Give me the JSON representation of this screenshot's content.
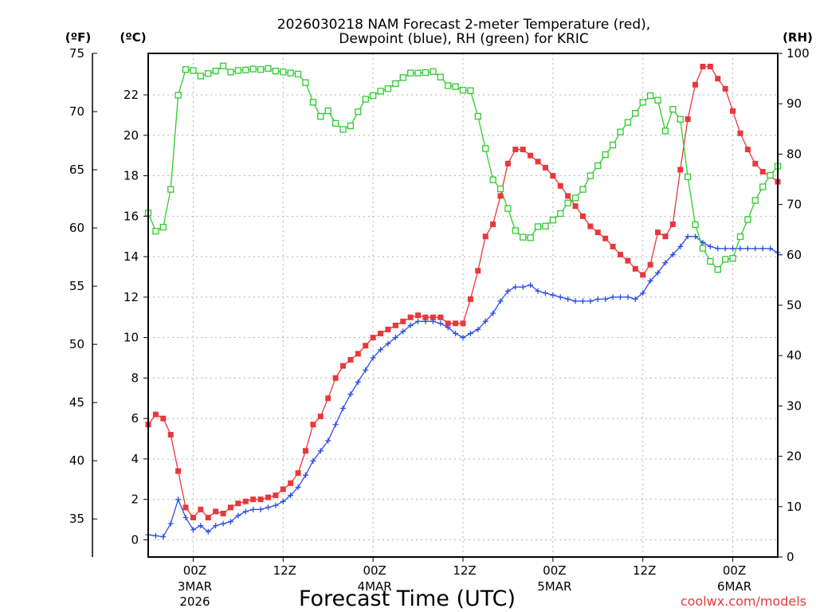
{
  "chart_data": {
    "type": "line",
    "title_line1": "2026030218 NAM Forecast 2-meter Temperature (red),",
    "title_line2": "Dewpoint (blue), RH (green) for KRIC",
    "xlabel": "Forecast Time (UTC)",
    "credit": "coolwx.com/models",
    "axis_units": {
      "fahrenheit": "(ºF)",
      "celsius": "(ºC)",
      "rh": "(RH)"
    },
    "celsius_axis": {
      "ylim": [
        -0.85,
        24.05
      ],
      "ticks": [
        "0",
        "2",
        "4",
        "6",
        "8",
        "10",
        "12",
        "14",
        "16",
        "18",
        "20",
        "22"
      ]
    },
    "fahrenheit_axis": {
      "ylim": [
        31.73,
        75.0
      ],
      "ticks": [
        "35",
        "40",
        "45",
        "50",
        "55",
        "60",
        "65",
        "70",
        "75"
      ]
    },
    "rh_axis": {
      "ylim": [
        0,
        100
      ],
      "ticks": [
        "0",
        "10",
        "20",
        "30",
        "40",
        "50",
        "60",
        "70",
        "80",
        "90",
        "100"
      ]
    },
    "time_axis": {
      "unit": "forecast hour",
      "xlim": [
        0,
        84
      ],
      "grid_hours": [
        6,
        18,
        30,
        42,
        54,
        66,
        78
      ],
      "ticks": [
        {
          "hour": 6,
          "label": "00Z",
          "date": "3MAR",
          "year": "2026"
        },
        {
          "hour": 18,
          "label": "12Z"
        },
        {
          "hour": 30,
          "label": "00Z",
          "date": "4MAR"
        },
        {
          "hour": 42,
          "label": "12Z"
        },
        {
          "hour": 54,
          "label": "00Z",
          "date": "5MAR"
        },
        {
          "hour": 66,
          "label": "12Z"
        },
        {
          "hour": 78,
          "label": "00Z",
          "date": "6MAR"
        }
      ]
    },
    "series": [
      {
        "name": "2-meter Temperature",
        "unit": "C",
        "color": "#e8383a",
        "marker": "filled-square",
        "x": [
          0,
          1,
          2,
          3,
          4,
          5,
          6,
          7,
          8,
          9,
          10,
          11,
          12,
          13,
          14,
          15,
          16,
          17,
          18,
          19,
          20,
          21,
          22,
          23,
          24,
          25,
          26,
          27,
          28,
          29,
          30,
          31,
          32,
          33,
          34,
          35,
          36,
          37,
          38,
          39,
          40,
          41,
          42,
          43,
          44,
          45,
          46,
          47,
          48,
          49,
          50,
          51,
          52,
          53,
          54,
          55,
          56,
          57,
          58,
          59,
          60,
          61,
          62,
          63,
          64,
          65,
          66,
          67,
          68,
          69,
          70,
          71,
          72,
          73,
          74,
          75,
          76,
          77,
          78,
          79,
          80,
          81,
          82,
          83,
          84
        ],
        "values": [
          5.7,
          6.2,
          6.0,
          5.2,
          3.4,
          1.6,
          1.1,
          1.5,
          1.1,
          1.4,
          1.3,
          1.6,
          1.8,
          1.9,
          2.0,
          2.0,
          2.1,
          2.2,
          2.5,
          2.8,
          3.3,
          4.4,
          5.7,
          6.1,
          7.0,
          8.0,
          8.6,
          8.9,
          9.2,
          9.6,
          10.0,
          10.2,
          10.4,
          10.6,
          10.8,
          11.0,
          11.1,
          11.0,
          11.0,
          11.0,
          10.7,
          10.7,
          10.7,
          11.9,
          13.3,
          15.0,
          15.6,
          17.0,
          18.6,
          19.3,
          19.3,
          19.0,
          18.7,
          18.4,
          18.0,
          17.5,
          17.0,
          16.5,
          16.0,
          15.5,
          15.2,
          14.9,
          14.5,
          14.1,
          13.8,
          13.4,
          13.1,
          13.6,
          15.2,
          15.0,
          15.6,
          18.3,
          20.8,
          22.5,
          23.4,
          23.4,
          22.8,
          22.3,
          21.2,
          20.1,
          19.3,
          18.6,
          18.2,
          18.0,
          17.7
        ]
      },
      {
        "name": "Dewpoint",
        "unit": "C",
        "color": "#2d4ee8",
        "marker": "plus",
        "x": [
          0,
          1,
          2,
          3,
          4,
          5,
          6,
          7,
          8,
          9,
          10,
          11,
          12,
          13,
          14,
          15,
          16,
          17,
          18,
          19,
          20,
          21,
          22,
          23,
          24,
          25,
          26,
          27,
          28,
          29,
          30,
          31,
          32,
          33,
          34,
          35,
          36,
          37,
          38,
          39,
          40,
          41,
          42,
          43,
          44,
          45,
          46,
          47,
          48,
          49,
          50,
          51,
          52,
          53,
          54,
          55,
          56,
          57,
          58,
          59,
          60,
          61,
          62,
          63,
          64,
          65,
          66,
          67,
          68,
          69,
          70,
          71,
          72,
          73,
          74,
          75,
          76,
          77,
          78,
          79,
          80,
          81,
          82,
          83,
          84
        ],
        "values": [
          0.25,
          0.2,
          0.15,
          0.8,
          2.0,
          1.1,
          0.5,
          0.7,
          0.4,
          0.7,
          0.8,
          0.9,
          1.2,
          1.4,
          1.5,
          1.5,
          1.6,
          1.7,
          1.9,
          2.2,
          2.6,
          3.2,
          3.9,
          4.4,
          4.9,
          5.7,
          6.5,
          7.2,
          7.8,
          8.4,
          9.0,
          9.4,
          9.7,
          10.0,
          10.3,
          10.6,
          10.8,
          10.8,
          10.8,
          10.7,
          10.5,
          10.2,
          10.0,
          10.2,
          10.4,
          10.8,
          11.2,
          11.8,
          12.3,
          12.5,
          12.5,
          12.6,
          12.3,
          12.2,
          12.1,
          12.0,
          11.9,
          11.8,
          11.8,
          11.8,
          11.9,
          11.9,
          12.0,
          12.0,
          12.0,
          11.9,
          12.2,
          12.8,
          13.2,
          13.7,
          14.1,
          14.5,
          15.0,
          15.0,
          14.7,
          14.5,
          14.4,
          14.4,
          14.4,
          14.4,
          14.4,
          14.4,
          14.4,
          14.4,
          14.2
        ]
      },
      {
        "name": "RH",
        "unit": "%",
        "color": "#2ecc2e",
        "marker": "open-square",
        "x": [
          0,
          1,
          2,
          3,
          4,
          5,
          6,
          7,
          8,
          9,
          10,
          11,
          12,
          13,
          14,
          15,
          16,
          17,
          18,
          19,
          20,
          21,
          22,
          23,
          24,
          25,
          26,
          27,
          28,
          29,
          30,
          31,
          32,
          33,
          34,
          35,
          36,
          37,
          38,
          39,
          40,
          41,
          42,
          43,
          44,
          45,
          46,
          47,
          48,
          49,
          50,
          51,
          52,
          53,
          54,
          55,
          56,
          57,
          58,
          59,
          60,
          61,
          62,
          63,
          64,
          65,
          66,
          67,
          68,
          69,
          70,
          71,
          72,
          73,
          74,
          75,
          76,
          77,
          78,
          79,
          80,
          81,
          82,
          83,
          84
        ],
        "values": [
          68.3,
          64.7,
          65.5,
          73,
          91.7,
          96.8,
          96.6,
          95.5,
          96,
          96.5,
          97.5,
          96.3,
          96.6,
          96.7,
          96.9,
          96.8,
          97,
          96.5,
          96.3,
          96.1,
          95.9,
          94.2,
          90.3,
          87.5,
          88.6,
          86.1,
          84.9,
          85.6,
          88.4,
          90.9,
          91.6,
          92.5,
          93,
          94,
          95.2,
          96.1,
          96.1,
          96.2,
          96.4,
          95.3,
          93.6,
          93.4,
          92.7,
          92.6,
          87.5,
          81.1,
          74.9,
          73.1,
          69.2,
          64.8,
          63.5,
          63.4,
          65.6,
          65.7,
          66.9,
          68.2,
          70.3,
          71.3,
          73,
          75.7,
          77.7,
          79.9,
          81.8,
          84.4,
          86.3,
          88.1,
          90.3,
          91.6,
          90.7,
          84.6,
          88.9,
          86.9,
          75.5,
          66,
          61.3,
          58.7,
          57.1,
          59.1,
          59.3,
          63.6,
          67,
          70.8,
          73.5,
          75.8,
          77.6
        ]
      }
    ]
  }
}
